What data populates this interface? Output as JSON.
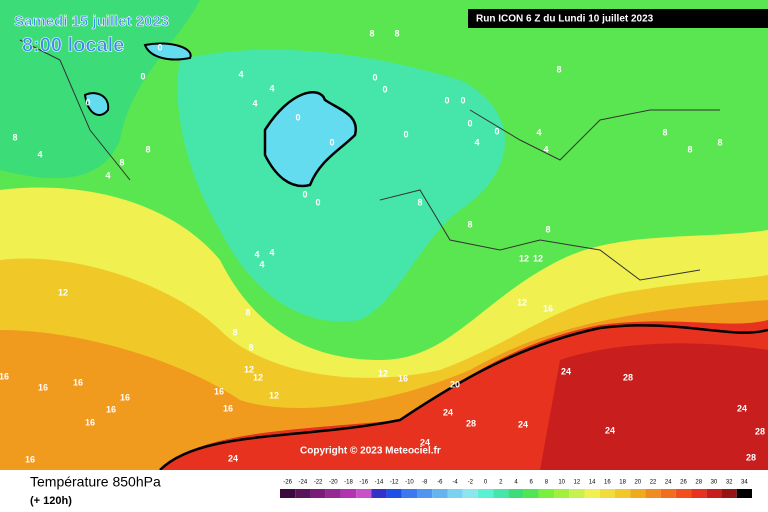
{
  "header": {
    "date": "Samedi 15 juillet 2023",
    "time": "8:00 locale",
    "run": "Run ICON 6 Z du Lundi 10 juillet 2023"
  },
  "copyright": "Copyright © 2023 Meteociel.fr",
  "footer": {
    "title": "Température 850hPa",
    "subtitle": "(+ 120h)"
  },
  "colorbar": {
    "labels": [
      -26,
      -24,
      -22,
      -20,
      -18,
      -16,
      -14,
      -12,
      -10,
      -8,
      -6,
      -4,
      -2,
      0,
      2,
      4,
      6,
      8,
      10,
      12,
      14,
      16,
      18,
      20,
      22,
      24,
      26,
      28,
      30,
      32,
      34
    ],
    "colors": [
      "#3c0a3c",
      "#5a145a",
      "#781e78",
      "#962896",
      "#b432b4",
      "#c850c8",
      "#3232c8",
      "#1e50e6",
      "#3c78f0",
      "#5096f0",
      "#64b4f0",
      "#78d2f0",
      "#8ce6f0",
      "#5af0d2",
      "#46e6aa",
      "#3cdc78",
      "#50e650",
      "#78f03c",
      "#a0f03c",
      "#c8f050",
      "#f0f050",
      "#f0dc3c",
      "#f0c828",
      "#f0aa1e",
      "#f08c1e",
      "#f06e1e",
      "#f0501e",
      "#e6321e",
      "#c81e1e",
      "#961414",
      "#000000"
    ]
  },
  "map_labels": [
    8,
    8,
    0,
    0,
    4,
    4,
    0,
    0,
    0,
    4,
    0,
    0,
    8,
    0,
    0,
    0,
    4,
    0,
    0,
    8,
    4,
    8,
    8,
    4,
    0,
    0,
    4,
    4,
    8,
    8,
    8,
    8,
    8,
    8,
    4,
    4,
    4,
    12,
    12,
    12,
    12,
    16,
    8,
    8,
    8,
    12,
    16,
    20,
    24,
    28,
    12,
    12,
    12,
    16,
    16,
    16,
    16,
    16,
    16,
    16,
    16,
    24,
    28,
    24,
    24,
    24,
    24,
    28,
    28,
    24,
    16
  ]
}
